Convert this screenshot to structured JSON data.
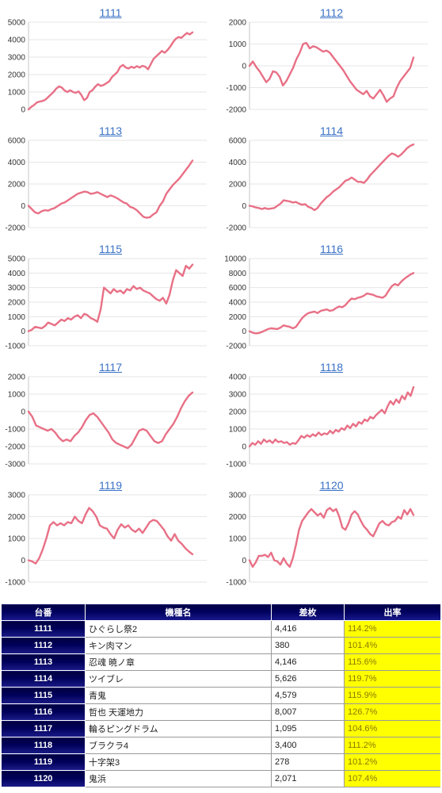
{
  "chart_data": [
    {
      "type": "line",
      "title": "1111",
      "ylim": [
        0,
        5000
      ],
      "yticks": [
        0,
        1000,
        2000,
        3000,
        4000,
        5000
      ],
      "grid": true,
      "legend": "none",
      "colors": {
        "line": "#e87086"
      },
      "series": [
        {
          "values": [
            0,
            150,
            250,
            400,
            450,
            480,
            550,
            700,
            850,
            1000,
            1200,
            1320,
            1250,
            1080,
            1000,
            1100,
            1000,
            950,
            1030,
            830,
            530,
            650,
            1000,
            1100,
            1300,
            1450,
            1350,
            1400,
            1500,
            1600,
            1850,
            2000,
            2150,
            2450,
            2550,
            2400,
            2350,
            2450,
            2380,
            2480,
            2400,
            2500,
            2450,
            2300,
            2600,
            2900,
            3050,
            3200,
            3350,
            3250,
            3400,
            3600,
            3850,
            4050,
            4150,
            4100,
            4250,
            4380,
            4300,
            4416
          ]
        }
      ]
    },
    {
      "type": "line",
      "title": "1112",
      "ylim": [
        -2000,
        2000
      ],
      "yticks": [
        -2000,
        -1000,
        0,
        1000,
        2000
      ],
      "grid": true,
      "legend": "none",
      "colors": {
        "line": "#e87086"
      },
      "series": [
        {
          "values": [
            0,
            200,
            -50,
            -250,
            -500,
            -750,
            -600,
            -250,
            -300,
            -500,
            -900,
            -700,
            -400,
            -100,
            300,
            600,
            1000,
            1050,
            800,
            900,
            850,
            750,
            650,
            700,
            600,
            400,
            200,
            0,
            -200,
            -450,
            -700,
            -900,
            -1100,
            -1200,
            -1300,
            -1150,
            -1400,
            -1500,
            -1300,
            -1100,
            -1350,
            -1650,
            -1500,
            -1400,
            -1000,
            -700,
            -500,
            -300,
            -100,
            380
          ]
        }
      ]
    },
    {
      "type": "line",
      "title": "1113",
      "ylim": [
        -2000,
        6000
      ],
      "yticks": [
        -2000,
        0,
        2000,
        4000,
        6000
      ],
      "grid": true,
      "legend": "none",
      "colors": {
        "line": "#e87086"
      },
      "series": [
        {
          "values": [
            0,
            -300,
            -600,
            -700,
            -500,
            -400,
            -450,
            -300,
            -200,
            0,
            200,
            300,
            500,
            700,
            900,
            1100,
            1200,
            1300,
            1250,
            1100,
            1150,
            1250,
            1100,
            950,
            800,
            950,
            850,
            700,
            500,
            300,
            200,
            -100,
            -200,
            -400,
            -700,
            -1000,
            -1100,
            -1050,
            -800,
            -600,
            0,
            400,
            1100,
            1500,
            1900,
            2200,
            2500,
            2900,
            3300,
            3700,
            4146
          ]
        }
      ]
    },
    {
      "type": "line",
      "title": "1114",
      "ylim": [
        -2000,
        6000
      ],
      "yticks": [
        -2000,
        0,
        2000,
        4000,
        6000
      ],
      "grid": true,
      "legend": "none",
      "colors": {
        "line": "#e87086"
      },
      "series": [
        {
          "values": [
            0,
            -50,
            -150,
            -200,
            -300,
            -200,
            -300,
            -250,
            -200,
            0,
            200,
            500,
            450,
            400,
            300,
            350,
            200,
            100,
            150,
            -100,
            -200,
            -400,
            -200,
            200,
            500,
            800,
            1000,
            1300,
            1500,
            1700,
            2000,
            2300,
            2400,
            2600,
            2400,
            2200,
            2200,
            2100,
            2400,
            2800,
            3100,
            3400,
            3700,
            4000,
            4300,
            4600,
            4800,
            4700,
            4500,
            4700,
            5000,
            5300,
            5500,
            5626
          ]
        }
      ]
    },
    {
      "type": "line",
      "title": "1115",
      "ylim": [
        -1000,
        5000
      ],
      "yticks": [
        -1000,
        0,
        1000,
        2000,
        3000,
        4000,
        5000
      ],
      "grid": true,
      "legend": "none",
      "colors": {
        "line": "#e87086"
      },
      "series": [
        {
          "values": [
            0,
            100,
            300,
            250,
            200,
            350,
            600,
            500,
            400,
            600,
            800,
            700,
            900,
            800,
            1000,
            1100,
            900,
            1200,
            1100,
            900,
            800,
            650,
            1500,
            3000,
            2800,
            2600,
            2900,
            2700,
            2800,
            2600,
            2900,
            2800,
            3100,
            2900,
            3000,
            2800,
            2700,
            2600,
            2400,
            2200,
            2100,
            2300,
            1900,
            2500,
            3500,
            4200,
            4000,
            3800,
            4500,
            4300,
            4579
          ]
        }
      ]
    },
    {
      "type": "line",
      "title": "1116",
      "ylim": [
        -2000,
        10000
      ],
      "yticks": [
        -2000,
        0,
        2000,
        4000,
        6000,
        8000,
        10000
      ],
      "grid": true,
      "legend": "none",
      "colors": {
        "line": "#e87086"
      },
      "series": [
        {
          "values": [
            0,
            -200,
            -300,
            -250,
            -100,
            100,
            300,
            400,
            350,
            300,
            500,
            800,
            700,
            600,
            400,
            600,
            1200,
            1800,
            2200,
            2500,
            2600,
            2700,
            2500,
            2800,
            2900,
            3000,
            2800,
            2900,
            3200,
            3400,
            3300,
            3600,
            4100,
            4500,
            4400,
            4600,
            4700,
            4900,
            5200,
            5100,
            5000,
            4800,
            4700,
            4600,
            4900,
            5600,
            6200,
            6500,
            6300,
            6800,
            7200,
            7500,
            7800,
            8007
          ]
        }
      ]
    },
    {
      "type": "line",
      "title": "1117",
      "ylim": [
        -3000,
        2000
      ],
      "yticks": [
        -3000,
        -2000,
        -1000,
        0,
        1000,
        2000
      ],
      "grid": true,
      "legend": "none",
      "colors": {
        "line": "#e87086"
      },
      "series": [
        {
          "values": [
            0,
            -300,
            -800,
            -900,
            -1000,
            -1100,
            -1000,
            -1200,
            -1500,
            -1700,
            -1600,
            -1700,
            -1400,
            -1200,
            -900,
            -500,
            -200,
            -100,
            -300,
            -600,
            -900,
            -1200,
            -1600,
            -1800,
            -1900,
            -2000,
            -2100,
            -1900,
            -1500,
            -1100,
            -1000,
            -1100,
            -1400,
            -1700,
            -1800,
            -1700,
            -1300,
            -1000,
            -700,
            -300,
            200,
            600,
            900,
            1095
          ]
        }
      ]
    },
    {
      "type": "line",
      "title": "1118",
      "ylim": [
        -1000,
        4000
      ],
      "yticks": [
        -1000,
        0,
        1000,
        2000,
        3000,
        4000
      ],
      "grid": true,
      "legend": "none",
      "colors": {
        "line": "#e87086"
      },
      "series": [
        {
          "values": [
            0,
            200,
            100,
            300,
            150,
            400,
            250,
            350,
            200,
            400,
            250,
            300,
            200,
            250,
            100,
            200,
            150,
            350,
            600,
            500,
            650,
            550,
            700,
            600,
            800,
            650,
            750,
            700,
            900,
            750,
            950,
            850,
            1050,
            950,
            1200,
            1050,
            1300,
            1150,
            1400,
            1300,
            1550,
            1450,
            1700,
            1600,
            1800,
            1950,
            2100,
            1900,
            2300,
            2600,
            2400,
            2700,
            2500,
            2900,
            2700,
            3100,
            2900,
            3400
          ]
        }
      ]
    },
    {
      "type": "line",
      "title": "1119",
      "ylim": [
        -1000,
        3000
      ],
      "yticks": [
        -1000,
        0,
        1000,
        2000,
        3000
      ],
      "grid": true,
      "legend": "none",
      "colors": {
        "line": "#e87086"
      },
      "series": [
        {
          "values": [
            0,
            -50,
            -150,
            100,
            500,
            1000,
            1600,
            1750,
            1600,
            1700,
            1600,
            1750,
            1700,
            2000,
            1800,
            1700,
            2100,
            2400,
            2250,
            2000,
            1600,
            1500,
            1450,
            1200,
            1000,
            1400,
            1650,
            1500,
            1600,
            1400,
            1300,
            1450,
            1250,
            1500,
            1750,
            1850,
            1800,
            1600,
            1400,
            1100,
            900,
            1200,
            900,
            750,
            550,
            400,
            278
          ]
        }
      ]
    },
    {
      "type": "line",
      "title": "1120",
      "ylim": [
        -1000,
        3000
      ],
      "yticks": [
        -1000,
        0,
        1000,
        2000,
        3000
      ],
      "grid": true,
      "legend": "none",
      "colors": {
        "line": "#e87086"
      },
      "series": [
        {
          "values": [
            0,
            -300,
            -100,
            200,
            200,
            250,
            150,
            350,
            0,
            -50,
            -200,
            100,
            -150,
            -300,
            100,
            700,
            1400,
            1800,
            2000,
            2200,
            2350,
            2200,
            2050,
            2150,
            1950,
            2300,
            2400,
            2250,
            2350,
            2000,
            1500,
            1400,
            1700,
            2100,
            2250,
            2100,
            1800,
            1550,
            1400,
            1200,
            1100,
            1400,
            1700,
            1800,
            1650,
            1600,
            1750,
            1800,
            2000,
            1900,
            2300,
            2100,
            2350,
            2071
          ]
        }
      ]
    }
  ],
  "table": {
    "headers": {
      "machine": "台番",
      "model": "機種名",
      "diff": "差枚",
      "rate": "出率"
    },
    "rows": [
      {
        "machine": "1111",
        "model": "ひぐらし祭2",
        "diff": "4,416",
        "rate": "114.2%"
      },
      {
        "machine": "1112",
        "model": "キン肉マン",
        "diff": "380",
        "rate": "101.4%"
      },
      {
        "machine": "1113",
        "model": "忍魂 暁ノ章",
        "diff": "4,146",
        "rate": "115.6%"
      },
      {
        "machine": "1114",
        "model": "ツイブレ",
        "diff": "5,626",
        "rate": "119.7%"
      },
      {
        "machine": "1115",
        "model": "青鬼",
        "diff": "4,579",
        "rate": "115.9%"
      },
      {
        "machine": "1116",
        "model": "哲也 天運地力",
        "diff": "8,007",
        "rate": "126.7%"
      },
      {
        "machine": "1117",
        "model": "輪るピングドラム",
        "diff": "1,095",
        "rate": "104.6%"
      },
      {
        "machine": "1118",
        "model": "ブラクラ4",
        "diff": "3,400",
        "rate": "111.2%"
      },
      {
        "machine": "1119",
        "model": "十字架3",
        "diff": "278",
        "rate": "101.2%"
      },
      {
        "machine": "1120",
        "model": "鬼浜",
        "diff": "2,071",
        "rate": "107.4%"
      }
    ]
  }
}
